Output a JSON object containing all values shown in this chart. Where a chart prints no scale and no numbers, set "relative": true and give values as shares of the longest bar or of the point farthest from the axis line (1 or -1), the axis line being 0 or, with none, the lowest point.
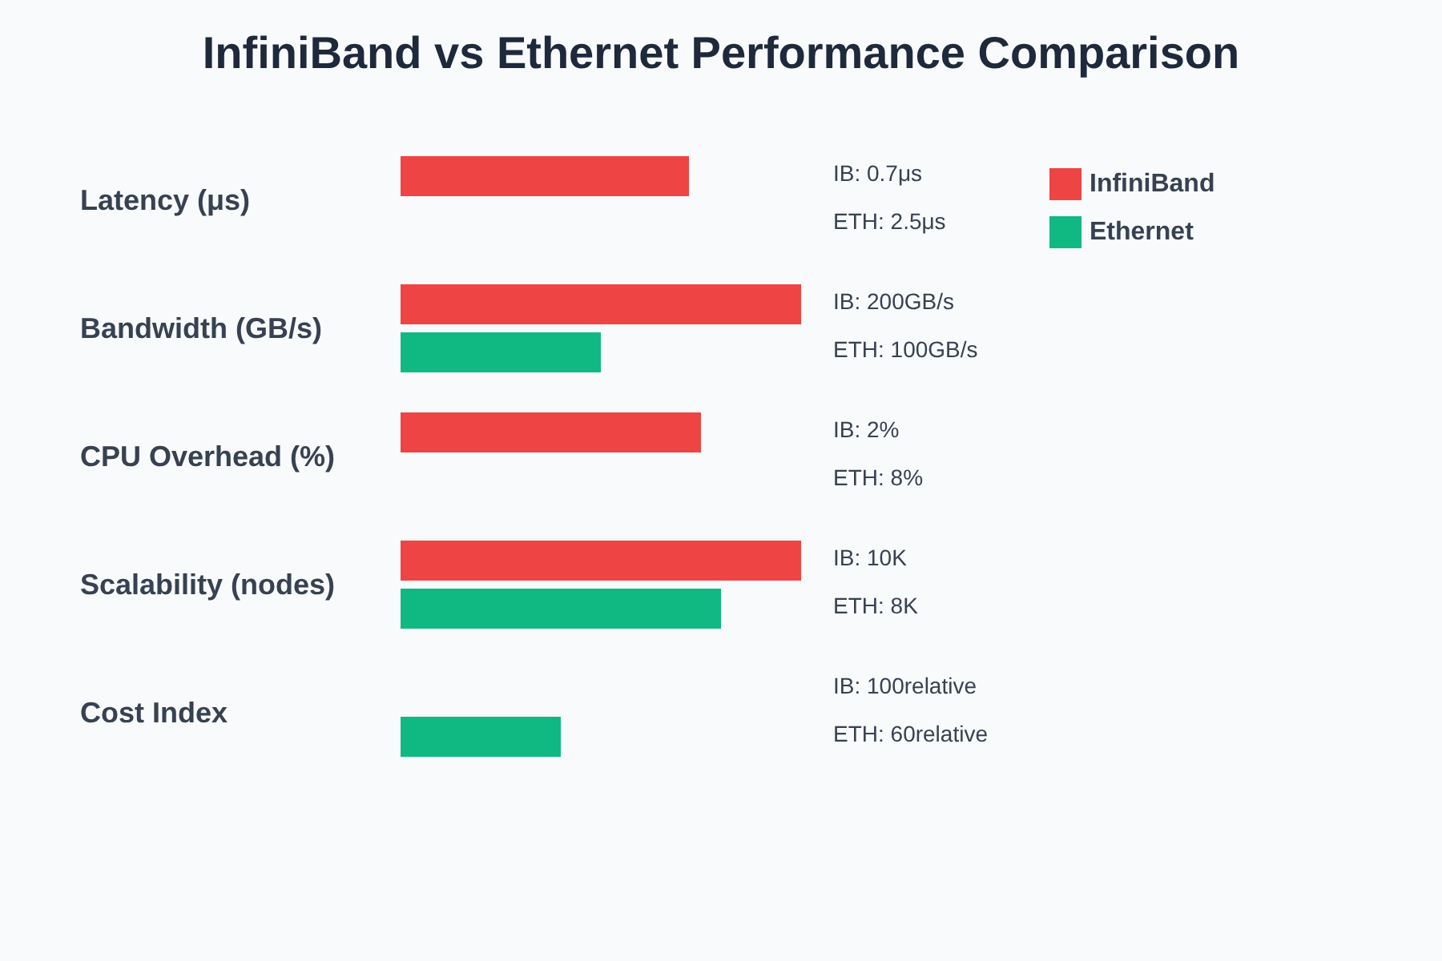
{
  "chart_data": {
    "type": "bar",
    "title": "InfiniBand vs Ethernet Performance Comparison",
    "orientation": "horizontal",
    "relative": true,
    "legend": "top right",
    "categories": [
      "Latency (μs)",
      "Bandwidth (GB/s)",
      "CPU Overhead (%)",
      "Scalability (nodes)",
      "Cost Index"
    ],
    "series": [
      {
        "name": "InfiniBand",
        "color": "#ef4444",
        "values": [
          0.72,
          1,
          0.75,
          1,
          0
        ]
      },
      {
        "name": "Ethernet",
        "color": "#10b981",
        "values": [
          0,
          0.5,
          0,
          0.8,
          0.4
        ]
      }
    ],
    "annotations": [
      "IB: 0.7μs",
      "ETH: 2.5μs",
      "IB: 200GB/s",
      "ETH: 100GB/s",
      "IB: 2%",
      "ETH: 8%",
      "IB: 10K",
      "ETH: 8K",
      "IB: 100relative",
      "ETH: 60relative"
    ]
  }
}
